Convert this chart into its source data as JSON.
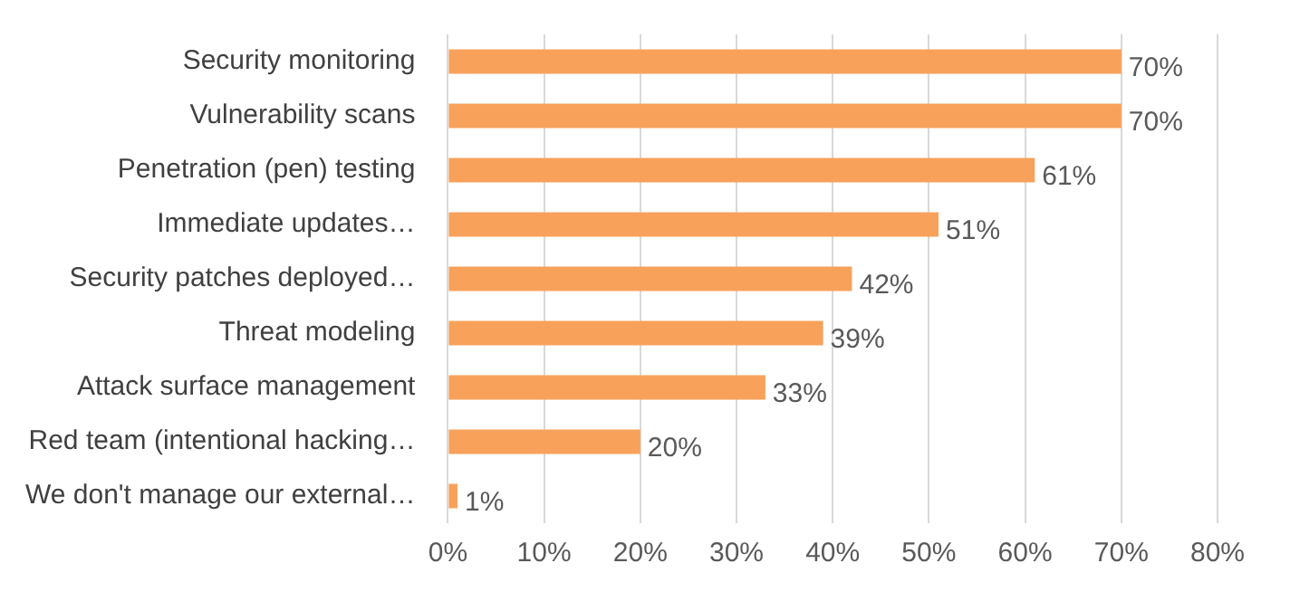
{
  "chart_data": {
    "type": "bar",
    "orientation": "horizontal",
    "categories": [
      "Security monitoring",
      "Vulnerability scans",
      "Penetration (pen) testing",
      "Immediate updates…",
      "Security patches deployed…",
      "Threat modeling",
      "Attack surface management",
      "Red team (intentional hacking…",
      "We don't manage our external…"
    ],
    "values": [
      70,
      70,
      61,
      51,
      42,
      39,
      33,
      20,
      1
    ],
    "value_labels": [
      "70%",
      "70%",
      "61%",
      "51%",
      "42%",
      "39%",
      "33%",
      "20%",
      "1%"
    ],
    "color": "#f8a15a",
    "xlim": [
      0,
      80
    ],
    "xticks": [
      {
        "value": 0,
        "label": "0%"
      },
      {
        "value": 10,
        "label": "10%"
      },
      {
        "value": 20,
        "label": "20%"
      },
      {
        "value": 30,
        "label": "30%"
      },
      {
        "value": 40,
        "label": "40%"
      },
      {
        "value": 50,
        "label": "50%"
      },
      {
        "value": 60,
        "label": "60%"
      },
      {
        "value": 70,
        "label": "70%"
      },
      {
        "value": 80,
        "label": "80%"
      }
    ],
    "grid": "x",
    "legend": false
  }
}
